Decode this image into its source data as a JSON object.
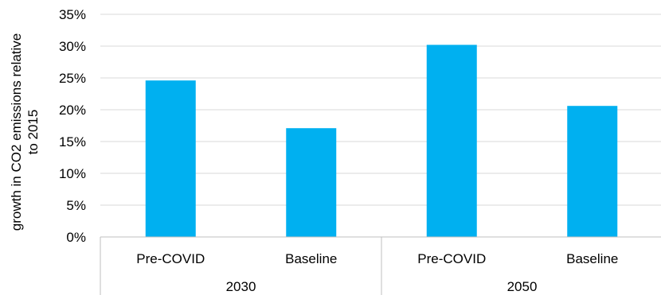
{
  "chart_data": {
    "type": "bar",
    "title": "",
    "xlabel": "",
    "ylabel": "growth in CO2 emissions relative to 2015",
    "ylabel_lines": [
      "growth in CO2 emissions relative",
      "to 2015"
    ],
    "ylim": [
      0,
      0.35
    ],
    "yticks": [
      "0%",
      "5%",
      "10%",
      "15%",
      "20%",
      "25%",
      "30%",
      "35%"
    ],
    "grid": true,
    "legend": "none",
    "categories": [
      "Pre-COVID",
      "Baseline",
      "Pre-COVID",
      "Baseline"
    ],
    "groups": [
      {
        "label": "2030",
        "categories": [
          "Pre-COVID",
          "Baseline"
        ]
      },
      {
        "label": "2050",
        "categories": [
          "Pre-COVID",
          "Baseline"
        ]
      }
    ],
    "values": [
      0.246,
      0.171,
      0.302,
      0.206
    ],
    "bar_color": "#00b0f0",
    "gridline_color": "#d9d9d9"
  }
}
